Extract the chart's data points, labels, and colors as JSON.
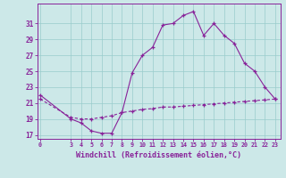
{
  "xlabel": "Windchill (Refroidissement éolien,°C)",
  "background_color": "#cce8e8",
  "line_color": "#882299",
  "grid_color": "#99cccc",
  "x_hours": [
    0,
    3,
    4,
    5,
    6,
    7,
    8,
    9,
    10,
    11,
    12,
    13,
    14,
    15,
    16,
    17,
    18,
    19,
    20,
    21,
    22,
    23
  ],
  "temp_values": [
    22.0,
    19.0,
    18.5,
    17.5,
    17.2,
    17.2,
    19.8,
    24.8,
    27.0,
    28.0,
    30.8,
    31.0,
    32.0,
    32.5,
    29.5,
    31.0,
    29.5,
    28.5,
    26.0,
    25.0,
    23.0,
    21.5
  ],
  "windchill_values": [
    21.5,
    19.2,
    19.0,
    19.0,
    19.2,
    19.4,
    19.8,
    20.0,
    20.2,
    20.3,
    20.5,
    20.5,
    20.6,
    20.7,
    20.8,
    20.9,
    21.0,
    21.1,
    21.2,
    21.3,
    21.4,
    21.5
  ],
  "ylim": [
    16.5,
    33.5
  ],
  "yticks": [
    17,
    19,
    21,
    23,
    25,
    27,
    29,
    31
  ],
  "xticks": [
    0,
    3,
    4,
    5,
    6,
    7,
    8,
    9,
    10,
    11,
    12,
    13,
    14,
    15,
    16,
    17,
    18,
    19,
    20,
    21,
    22,
    23
  ],
  "xlim": [
    -0.3,
    23.5
  ]
}
